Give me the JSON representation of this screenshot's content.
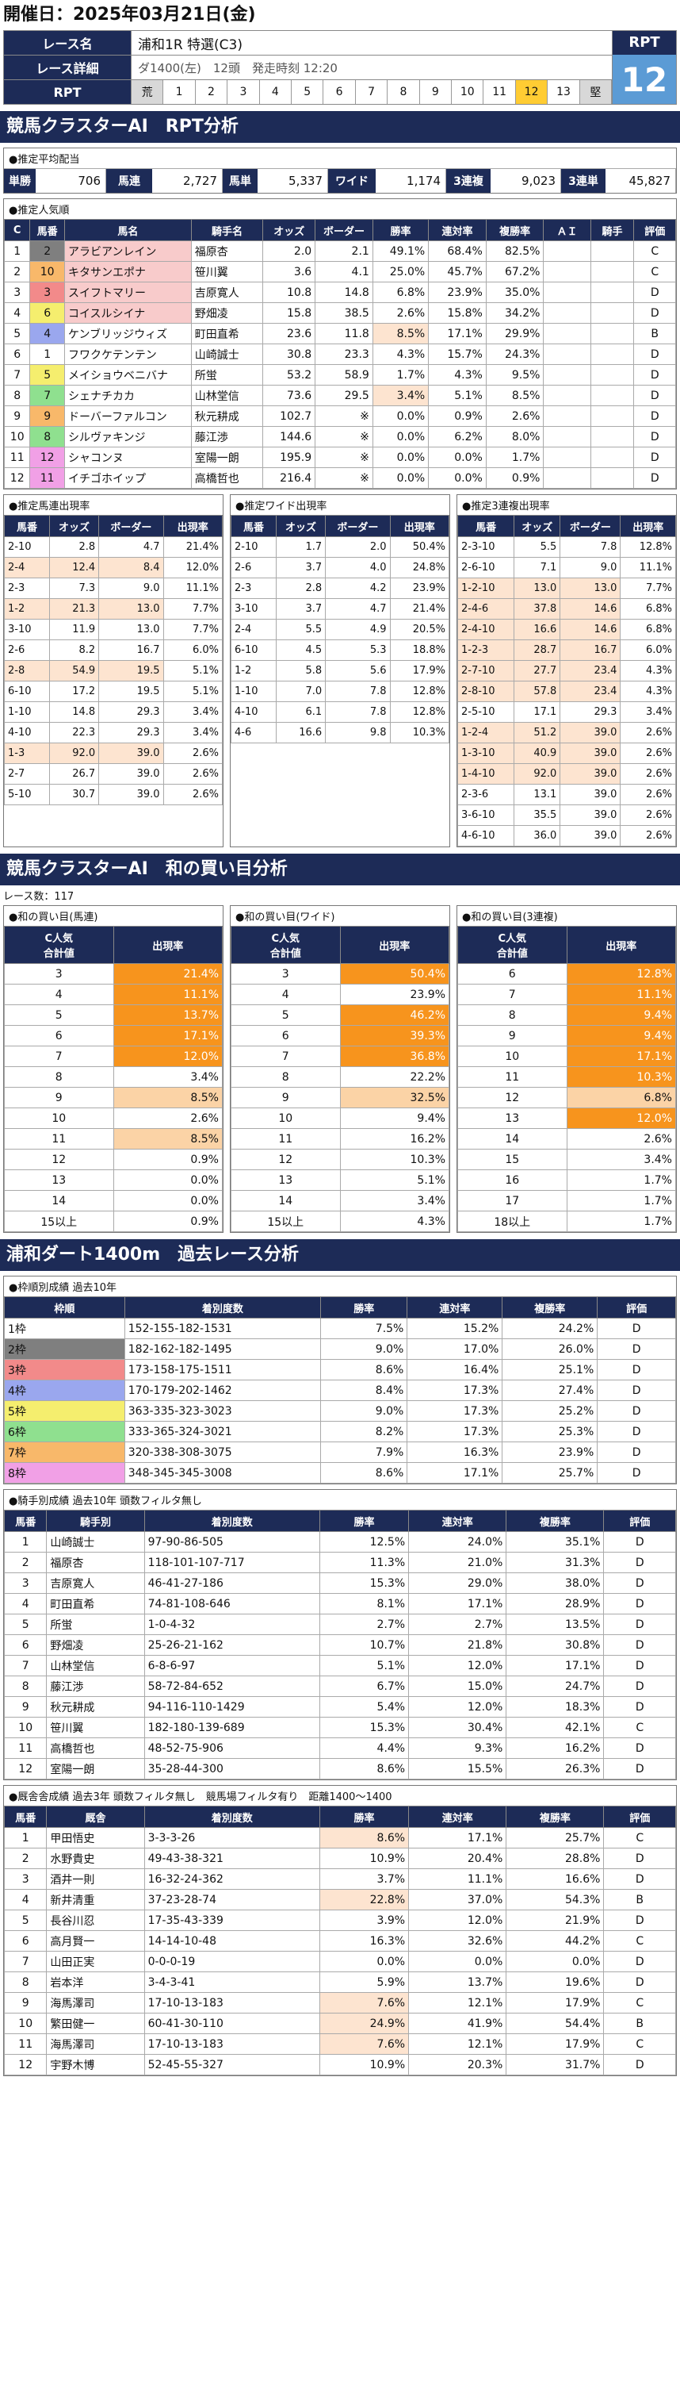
{
  "date_line": "開催日：2025年03月21日(金)",
  "header": {
    "race_label": "レース名",
    "race_name": "浦和1R 特選(C3)",
    "detail_label": "レース詳細",
    "detail": "ダ1400(左)　12頭　発走時刻 12:20",
    "rpt_label": "RPT",
    "rpt_scale": [
      "荒",
      "1",
      "2",
      "3",
      "4",
      "5",
      "6",
      "7",
      "8",
      "9",
      "10",
      "11",
      "12",
      "13",
      "堅"
    ],
    "rpt_tag": "RPT",
    "rpt_value": "12"
  },
  "sec1_title": "競馬クラスターAI　RPT分析",
  "payout": {
    "title": "●推定平均配当",
    "items": [
      {
        "k": "単勝",
        "v": "706"
      },
      {
        "k": "馬連",
        "v": "2,727"
      },
      {
        "k": "馬単",
        "v": "5,337"
      },
      {
        "k": "ワイド",
        "v": "1,174"
      },
      {
        "k": "3連複",
        "v": "9,023"
      },
      {
        "k": "3連単",
        "v": "45,827"
      }
    ]
  },
  "popularity": {
    "title": "●推定人気順",
    "headers": [
      "C",
      "馬番",
      "馬名",
      "騎手名",
      "オッズ",
      "ボーダー",
      "勝率",
      "連対率",
      "複勝率",
      "ＡＩ",
      "騎手",
      "評価"
    ],
    "rows": [
      [
        "1",
        "2",
        "アラビアンレイン",
        "福原杏",
        "2.0",
        "2.1",
        "49.1%",
        "68.4%",
        "82.5%",
        "",
        "",
        "C"
      ],
      [
        "2",
        "10",
        "キタサンエポナ",
        "笹川翼",
        "3.6",
        "4.1",
        "25.0%",
        "45.7%",
        "67.2%",
        "",
        "",
        "C"
      ],
      [
        "3",
        "3",
        "スイフトマリー",
        "吉原寛人",
        "10.8",
        "14.8",
        "6.8%",
        "23.9%",
        "35.0%",
        "",
        "",
        "D"
      ],
      [
        "4",
        "6",
        "コイスルシイナ",
        "野畑凌",
        "15.8",
        "38.5",
        "2.6%",
        "15.8%",
        "34.2%",
        "",
        "",
        "D"
      ],
      [
        "5",
        "4",
        "ケンブリッジウィズ",
        "町田直希",
        "23.6",
        "11.8",
        "8.5%",
        "17.1%",
        "29.9%",
        "",
        "",
        "B"
      ],
      [
        "6",
        "1",
        "フワクケテンテン",
        "山崎誠士",
        "30.8",
        "23.3",
        "4.3%",
        "15.7%",
        "24.3%",
        "",
        "",
        "D"
      ],
      [
        "7",
        "5",
        "メイショウベニバナ",
        "所蛍",
        "53.2",
        "58.9",
        "1.7%",
        "4.3%",
        "9.5%",
        "",
        "",
        "D"
      ],
      [
        "8",
        "7",
        "シェナチカカ",
        "山林堂信",
        "73.6",
        "29.5",
        "3.4%",
        "5.1%",
        "8.5%",
        "",
        "",
        "D"
      ],
      [
        "9",
        "9",
        "ドーバーファルコン",
        "秋元耕成",
        "102.7",
        "※",
        "0.0%",
        "0.9%",
        "2.6%",
        "",
        "",
        "D"
      ],
      [
        "10",
        "8",
        "シルヴァキンジ",
        "藤江渉",
        "144.6",
        "※",
        "0.0%",
        "6.2%",
        "8.0%",
        "",
        "",
        "D"
      ],
      [
        "11",
        "12",
        "シャコンヌ",
        "室陽一朗",
        "195.9",
        "※",
        "0.0%",
        "0.0%",
        "1.7%",
        "",
        "",
        "D"
      ],
      [
        "12",
        "11",
        "イチゴホイップ",
        "高橋哲也",
        "216.4",
        "※",
        "0.0%",
        "0.0%",
        "0.9%",
        "",
        "",
        "D"
      ]
    ]
  },
  "umaren": {
    "title": "●推定馬連出現率",
    "headers": [
      "馬番",
      "オッズ",
      "ボーダー",
      "出現率"
    ],
    "rows": [
      [
        "2-10",
        "2.8",
        "4.7",
        "21.4%"
      ],
      [
        "2-4",
        "12.4",
        "8.4",
        "12.0%"
      ],
      [
        "2-3",
        "7.3",
        "9.0",
        "11.1%"
      ],
      [
        "1-2",
        "21.3",
        "13.0",
        "7.7%"
      ],
      [
        "3-10",
        "11.9",
        "13.0",
        "7.7%"
      ],
      [
        "2-6",
        "8.2",
        "16.7",
        "6.0%"
      ],
      [
        "2-8",
        "54.9",
        "19.5",
        "5.1%"
      ],
      [
        "6-10",
        "17.2",
        "19.5",
        "5.1%"
      ],
      [
        "1-10",
        "14.8",
        "29.3",
        "3.4%"
      ],
      [
        "4-10",
        "22.3",
        "29.3",
        "3.4%"
      ],
      [
        "1-3",
        "92.0",
        "39.0",
        "2.6%"
      ],
      [
        "2-7",
        "26.7",
        "39.0",
        "2.6%"
      ],
      [
        "5-10",
        "30.7",
        "39.0",
        "2.6%"
      ]
    ]
  },
  "wide": {
    "title": "●推定ワイド出現率",
    "headers": [
      "馬番",
      "オッズ",
      "ボーダー",
      "出現率"
    ],
    "rows": [
      [
        "2-10",
        "1.7",
        "2.0",
        "50.4%"
      ],
      [
        "2-6",
        "3.7",
        "4.0",
        "24.8%"
      ],
      [
        "2-3",
        "2.8",
        "4.2",
        "23.9%"
      ],
      [
        "3-10",
        "3.7",
        "4.7",
        "21.4%"
      ],
      [
        "2-4",
        "5.5",
        "4.9",
        "20.5%"
      ],
      [
        "6-10",
        "4.5",
        "5.3",
        "18.8%"
      ],
      [
        "1-2",
        "5.8",
        "5.6",
        "17.9%"
      ],
      [
        "1-10",
        "7.0",
        "7.8",
        "12.8%"
      ],
      [
        "4-10",
        "6.1",
        "7.8",
        "12.8%"
      ],
      [
        "4-6",
        "16.6",
        "9.8",
        "10.3%"
      ]
    ]
  },
  "trio": {
    "title": "●推定3連複出現率",
    "headers": [
      "馬番",
      "オッズ",
      "ボーダー",
      "出現率"
    ],
    "rows": [
      [
        "2-3-10",
        "5.5",
        "7.8",
        "12.8%"
      ],
      [
        "2-6-10",
        "7.1",
        "9.0",
        "11.1%"
      ],
      [
        "1-2-10",
        "13.0",
        "13.0",
        "7.7%"
      ],
      [
        "2-4-6",
        "37.8",
        "14.6",
        "6.8%"
      ],
      [
        "2-4-10",
        "16.6",
        "14.6",
        "6.8%"
      ],
      [
        "1-2-3",
        "28.7",
        "16.7",
        "6.0%"
      ],
      [
        "2-7-10",
        "27.7",
        "23.4",
        "4.3%"
      ],
      [
        "2-8-10",
        "57.8",
        "23.4",
        "4.3%"
      ],
      [
        "2-5-10",
        "17.1",
        "29.3",
        "3.4%"
      ],
      [
        "1-2-4",
        "51.2",
        "39.0",
        "2.6%"
      ],
      [
        "1-3-10",
        "40.9",
        "39.0",
        "2.6%"
      ],
      [
        "1-4-10",
        "92.0",
        "39.0",
        "2.6%"
      ],
      [
        "2-3-6",
        "13.1",
        "39.0",
        "2.6%"
      ],
      [
        "3-6-10",
        "35.5",
        "39.0",
        "2.6%"
      ],
      [
        "4-6-10",
        "36.0",
        "39.0",
        "2.6%"
      ]
    ]
  },
  "sec2_title": "競馬クラスターAI　和の買い目分析",
  "race_count": "レース数：117",
  "wa_umaren": {
    "title": "●和の買い目(馬連)",
    "h1": "C人気",
    "h1b": "合計値",
    "h2": "出現率",
    "rows": [
      [
        "3",
        "21.4%"
      ],
      [
        "4",
        "11.1%"
      ],
      [
        "5",
        "13.7%"
      ],
      [
        "6",
        "17.1%"
      ],
      [
        "7",
        "12.0%"
      ],
      [
        "8",
        "3.4%"
      ],
      [
        "9",
        "8.5%"
      ],
      [
        "10",
        "2.6%"
      ],
      [
        "11",
        "8.5%"
      ],
      [
        "12",
        "0.9%"
      ],
      [
        "13",
        "0.0%"
      ],
      [
        "14",
        "0.0%"
      ],
      [
        "15以上",
        "0.9%"
      ]
    ]
  },
  "wa_wide": {
    "title": "●和の買い目(ワイド)",
    "h1": "C人気",
    "h1b": "合計値",
    "h2": "出現率",
    "rows": [
      [
        "3",
        "50.4%"
      ],
      [
        "4",
        "23.9%"
      ],
      [
        "5",
        "46.2%"
      ],
      [
        "6",
        "39.3%"
      ],
      [
        "7",
        "36.8%"
      ],
      [
        "8",
        "22.2%"
      ],
      [
        "9",
        "32.5%"
      ],
      [
        "10",
        "9.4%"
      ],
      [
        "11",
        "16.2%"
      ],
      [
        "12",
        "10.3%"
      ],
      [
        "13",
        "5.1%"
      ],
      [
        "14",
        "3.4%"
      ],
      [
        "15以上",
        "4.3%"
      ]
    ]
  },
  "wa_trio": {
    "title": "●和の買い目(3連複)",
    "h1": "C人気",
    "h1b": "合計値",
    "h2": "出現率",
    "rows": [
      [
        "6",
        "12.8%"
      ],
      [
        "7",
        "11.1%"
      ],
      [
        "8",
        "9.4%"
      ],
      [
        "9",
        "9.4%"
      ],
      [
        "10",
        "17.1%"
      ],
      [
        "11",
        "10.3%"
      ],
      [
        "12",
        "6.8%"
      ],
      [
        "13",
        "12.0%"
      ],
      [
        "14",
        "2.6%"
      ],
      [
        "15",
        "3.4%"
      ],
      [
        "16",
        "1.7%"
      ],
      [
        "17",
        "1.7%"
      ],
      [
        "18以上",
        "1.7%"
      ]
    ]
  },
  "sec3_title": "浦和ダート1400m　過去レース分析",
  "waku": {
    "title": "●枠順別成績 過去10年",
    "headers": [
      "枠順",
      "着別度数",
      "勝率",
      "連対率",
      "複勝率",
      "評価"
    ],
    "rows": [
      [
        "1枠",
        "152-155-182-1531",
        "7.5%",
        "15.2%",
        "24.2%",
        "D"
      ],
      [
        "2枠",
        "182-162-182-1495",
        "9.0%",
        "17.0%",
        "26.0%",
        "D"
      ],
      [
        "3枠",
        "173-158-175-1511",
        "8.6%",
        "16.4%",
        "25.1%",
        "D"
      ],
      [
        "4枠",
        "170-179-202-1462",
        "8.4%",
        "17.3%",
        "27.4%",
        "D"
      ],
      [
        "5枠",
        "363-335-323-3023",
        "9.0%",
        "17.3%",
        "25.2%",
        "D"
      ],
      [
        "6枠",
        "333-365-324-3021",
        "8.2%",
        "17.3%",
        "25.3%",
        "D"
      ],
      [
        "7枠",
        "320-338-308-3075",
        "7.9%",
        "16.3%",
        "23.9%",
        "D"
      ],
      [
        "8枠",
        "348-345-345-3008",
        "8.6%",
        "17.1%",
        "25.7%",
        "D"
      ]
    ]
  },
  "jockey": {
    "title": "●騎手別成績 過去10年 頭数フィルタ無し",
    "headers": [
      "馬番",
      "騎手別",
      "着別度数",
      "勝率",
      "連対率",
      "複勝率",
      "評価"
    ],
    "rows": [
      [
        "1",
        "山崎誠士",
        "97-90-86-505",
        "12.5%",
        "24.0%",
        "35.1%",
        "D"
      ],
      [
        "2",
        "福原杏",
        "118-101-107-717",
        "11.3%",
        "21.0%",
        "31.3%",
        "D"
      ],
      [
        "3",
        "吉原寛人",
        "46-41-27-186",
        "15.3%",
        "29.0%",
        "38.0%",
        "D"
      ],
      [
        "4",
        "町田直希",
        "74-81-108-646",
        "8.1%",
        "17.1%",
        "28.9%",
        "D"
      ],
      [
        "5",
        "所蛍",
        "1-0-4-32",
        "2.7%",
        "2.7%",
        "13.5%",
        "D"
      ],
      [
        "6",
        "野畑凌",
        "25-26-21-162",
        "10.7%",
        "21.8%",
        "30.8%",
        "D"
      ],
      [
        "7",
        "山林堂信",
        "6-8-6-97",
        "5.1%",
        "12.0%",
        "17.1%",
        "D"
      ],
      [
        "8",
        "藤江渉",
        "58-72-84-652",
        "6.7%",
        "15.0%",
        "24.7%",
        "D"
      ],
      [
        "9",
        "秋元耕成",
        "94-116-110-1429",
        "5.4%",
        "12.0%",
        "18.3%",
        "D"
      ],
      [
        "10",
        "笹川翼",
        "182-180-139-689",
        "15.3%",
        "30.4%",
        "42.1%",
        "C"
      ],
      [
        "11",
        "高橋哲也",
        "48-52-75-906",
        "4.4%",
        "9.3%",
        "16.2%",
        "D"
      ],
      [
        "12",
        "室陽一朗",
        "35-28-44-300",
        "8.6%",
        "15.5%",
        "26.3%",
        "D"
      ]
    ]
  },
  "trainer": {
    "title": "●厩舎舎成績 過去3年 頭数フィルタ無し　競馬場フィルタ有り　距離1400〜1400",
    "headers": [
      "馬番",
      "厩舎",
      "着別度数",
      "勝率",
      "連対率",
      "複勝率",
      "評価"
    ],
    "rows": [
      [
        "1",
        "甲田悟史",
        "3-3-3-26",
        "8.6%",
        "17.1%",
        "25.7%",
        "C"
      ],
      [
        "2",
        "水野貴史",
        "49-43-38-321",
        "10.9%",
        "20.4%",
        "28.8%",
        "D"
      ],
      [
        "3",
        "酒井一則",
        "16-32-24-362",
        "3.7%",
        "11.1%",
        "16.6%",
        "D"
      ],
      [
        "4",
        "新井清重",
        "37-23-28-74",
        "22.8%",
        "37.0%",
        "54.3%",
        "B"
      ],
      [
        "5",
        "長谷川忍",
        "17-35-43-339",
        "3.9%",
        "12.0%",
        "21.9%",
        "D"
      ],
      [
        "6",
        "高月賢一",
        "14-14-10-48",
        "16.3%",
        "32.6%",
        "44.2%",
        "C"
      ],
      [
        "7",
        "山田正実",
        "0-0-0-19",
        "0.0%",
        "0.0%",
        "0.0%",
        "D"
      ],
      [
        "8",
        "岩本洋",
        "3-4-3-41",
        "5.9%",
        "13.7%",
        "19.6%",
        "D"
      ],
      [
        "9",
        "海馬澤司",
        "17-10-13-183",
        "7.6%",
        "12.1%",
        "17.9%",
        "C"
      ],
      [
        "10",
        "繁田健一",
        "60-41-30-110",
        "24.9%",
        "41.9%",
        "54.4%",
        "B"
      ],
      [
        "11",
        "海馬澤司",
        "17-10-13-183",
        "7.6%",
        "12.1%",
        "17.9%",
        "C"
      ],
      [
        "12",
        "宇野木博",
        "52-45-55-327",
        "10.9%",
        "20.3%",
        "31.7%",
        "D"
      ]
    ]
  },
  "colors": {
    "navy": "#1d2b57",
    "waku": [
      "#ffffff",
      "#7f7f7f",
      "#f28a8a",
      "#9aa7ee",
      "#f5ee6e",
      "#8fe08f",
      "#f8b86a",
      "#f1a0e6"
    ]
  }
}
